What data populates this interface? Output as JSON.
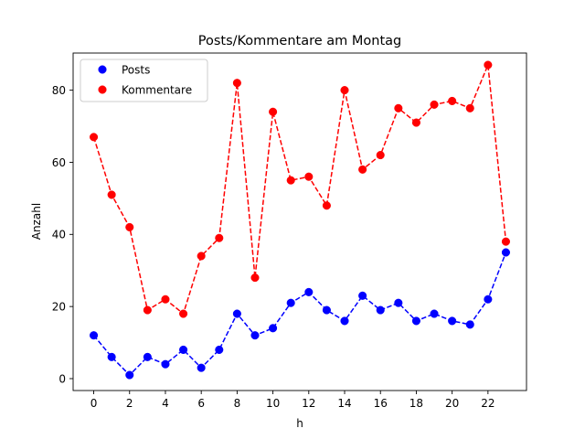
{
  "chart_data": {
    "type": "line",
    "title": "Posts/Kommentare am Montag",
    "xlabel": "h",
    "ylabel": "Anzahl",
    "x": [
      0,
      1,
      2,
      3,
      4,
      5,
      6,
      7,
      8,
      9,
      10,
      11,
      12,
      13,
      14,
      15,
      16,
      17,
      18,
      19,
      20,
      21,
      22,
      23
    ],
    "xticks": [
      0,
      2,
      4,
      6,
      8,
      10,
      12,
      14,
      16,
      18,
      20,
      22
    ],
    "yticks": [
      0,
      20,
      40,
      60,
      80
    ],
    "xlim": [
      -1.15,
      24.15
    ],
    "ylim": [
      -3.3,
      90.3
    ],
    "grid": false,
    "legend_position": "upper left",
    "series": [
      {
        "name": "Posts",
        "color": "#0000ff",
        "style": "dashed line with circle markers",
        "values": [
          12,
          6,
          1,
          6,
          4,
          8,
          3,
          8,
          18,
          12,
          14,
          21,
          24,
          19,
          16,
          23,
          19,
          21,
          16,
          18,
          16,
          15,
          22,
          35
        ]
      },
      {
        "name": "Kommentare",
        "color": "#ff0000",
        "style": "dashed line with circle markers",
        "values": [
          67,
          51,
          42,
          19,
          22,
          18,
          34,
          39,
          82,
          28,
          74,
          55,
          56,
          48,
          80,
          58,
          62,
          75,
          71,
          76,
          77,
          75,
          87,
          38
        ]
      }
    ]
  }
}
